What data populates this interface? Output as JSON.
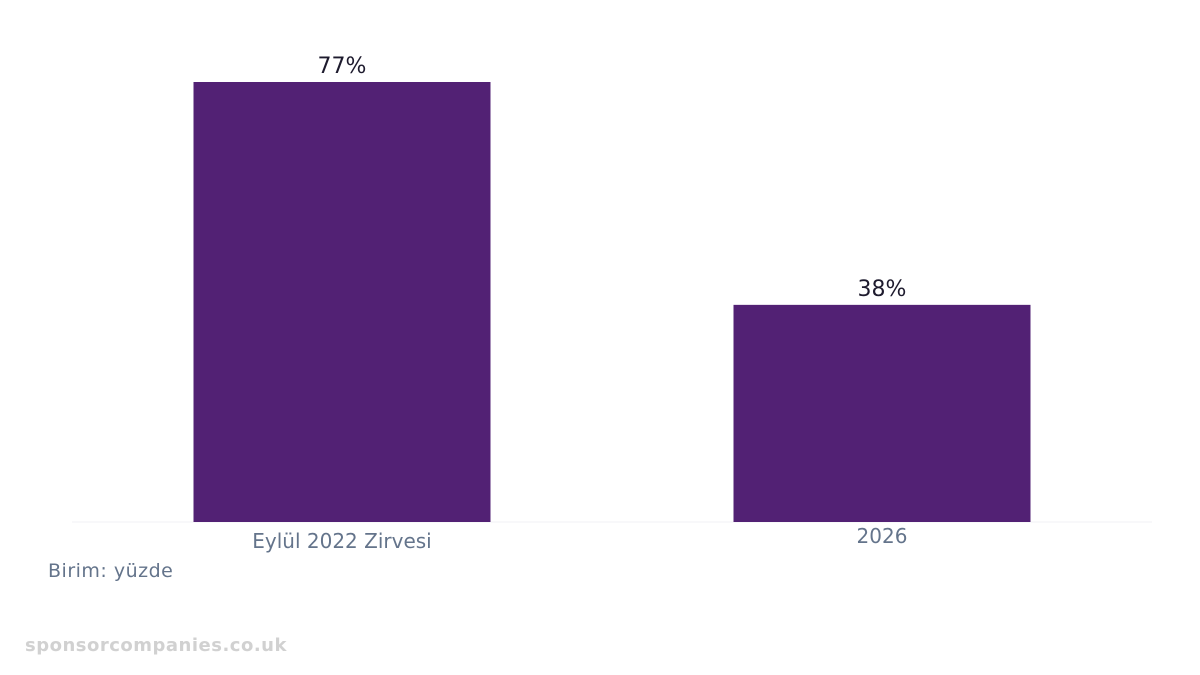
{
  "chart_data": {
    "type": "bar",
    "categories": [
      "Eylül 2022 Zirvesi",
      "2026"
    ],
    "values": [
      77,
      38
    ],
    "value_labels": [
      "77%",
      "38%"
    ],
    "unit": "%",
    "ylim": [
      0,
      77
    ],
    "grid": false,
    "legend": "none",
    "title": "",
    "xlabel": "",
    "ylabel": ""
  },
  "colors": {
    "bar": "#522174",
    "value_label": "#1e1b2e",
    "category_label": "#64748b",
    "baseline": "#f1f1f4"
  },
  "unit_note": "Birim: yüzde",
  "watermark": "sponsorcompanies.co.uk"
}
